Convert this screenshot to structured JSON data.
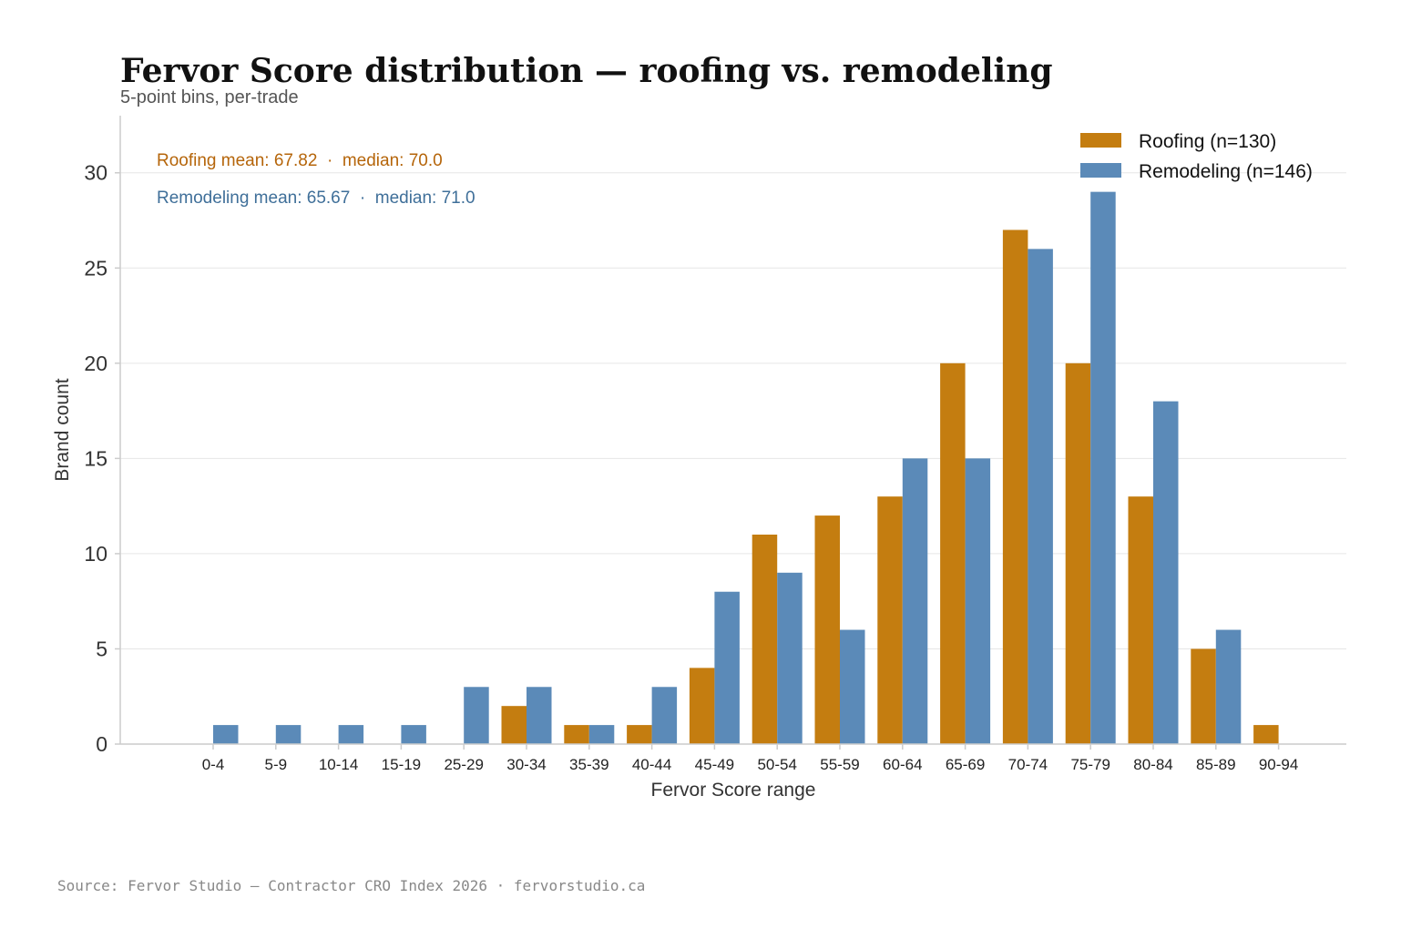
{
  "chart_data": {
    "type": "bar",
    "title": "Fervor Score distribution — roofing vs. remodeling",
    "subtitle": "5-point bins, per-trade",
    "xlabel": "Fervor Score range",
    "ylabel": "Brand count",
    "ylim": [
      0,
      33
    ],
    "yticks": [
      0,
      5,
      10,
      15,
      20,
      25,
      30
    ],
    "grid": "horizontal",
    "legend_position": "top-right",
    "categories": [
      "0-4",
      "5-9",
      "10-14",
      "15-19",
      "25-29",
      "30-34",
      "35-39",
      "40-44",
      "45-49",
      "50-54",
      "55-59",
      "60-64",
      "65-69",
      "70-74",
      "75-79",
      "80-84",
      "85-89",
      "90-94"
    ],
    "series": [
      {
        "name": "Roofing (n=130)",
        "color": "#c47d10",
        "values": [
          0,
          0,
          0,
          0,
          0,
          2,
          1,
          1,
          4,
          11,
          12,
          13,
          20,
          27,
          20,
          13,
          5,
          1
        ]
      },
      {
        "name": "Remodeling (n=146)",
        "color": "#5b8ab8",
        "values": [
          1,
          1,
          1,
          1,
          3,
          3,
          1,
          3,
          8,
          9,
          6,
          15,
          15,
          26,
          29,
          18,
          6,
          0
        ]
      }
    ],
    "annotations": [
      {
        "text": "Roofing mean: 67.82  ·  median: 70.0",
        "color": "#b5650a"
      },
      {
        "text": "Remodeling mean: 65.67  ·  median: 71.0",
        "color": "#3f6f99"
      }
    ]
  },
  "footer": {
    "source": "Source: Fervor Studio — Contractor CRO Index 2026 · fervorstudio.ca"
  }
}
